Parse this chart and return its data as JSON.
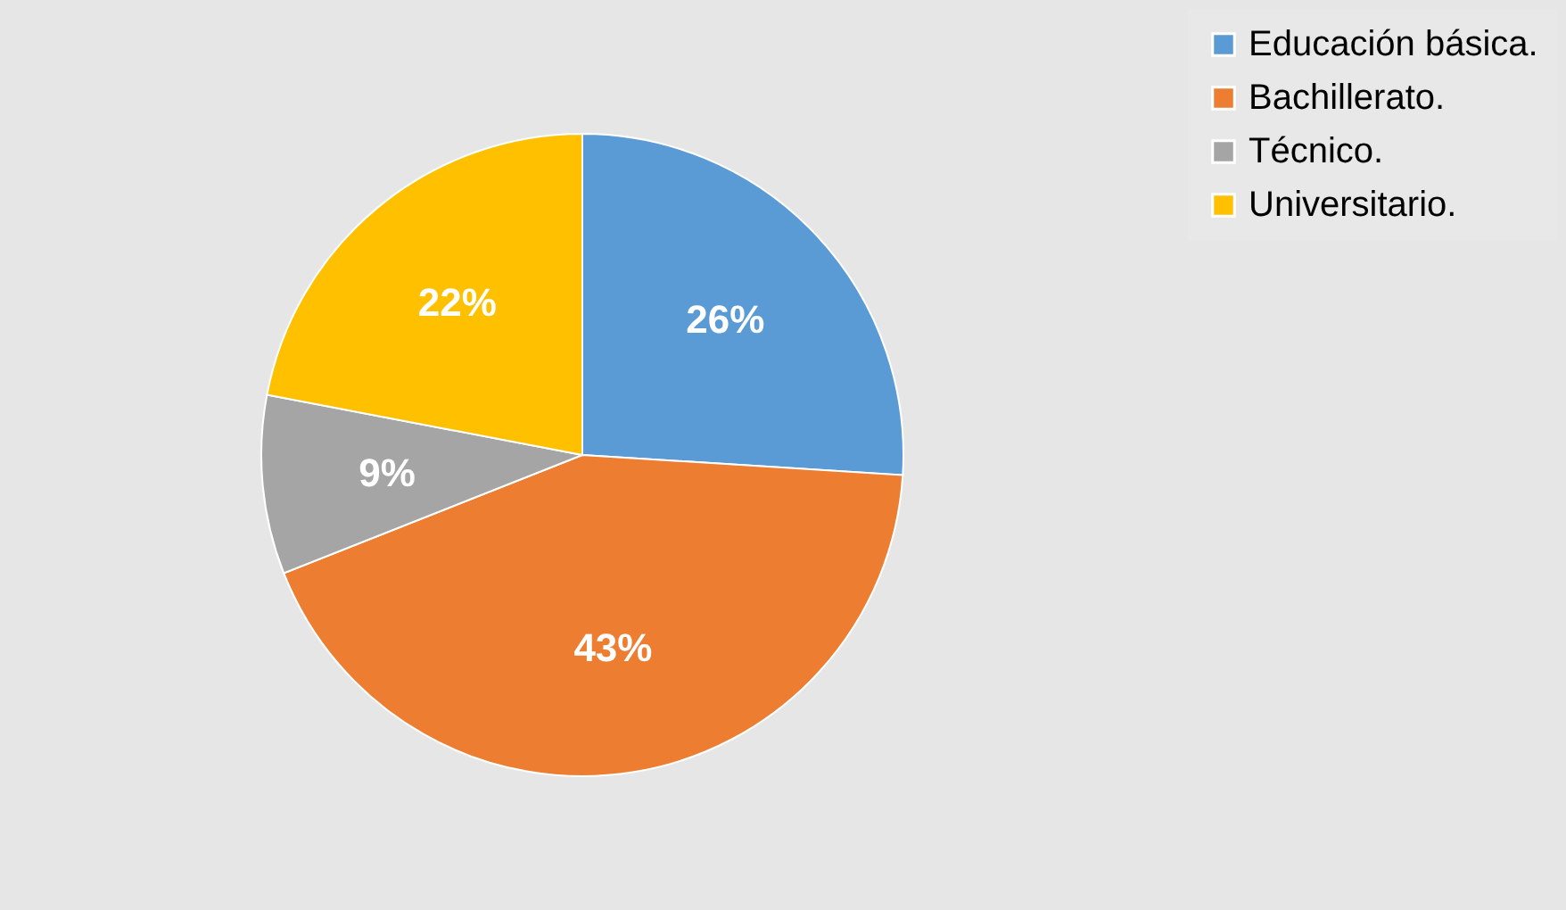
{
  "chart_data": {
    "type": "pie",
    "categories": [
      "Educación básica.",
      "Bachillerato.",
      "Técnico.",
      "Universitario."
    ],
    "values": [
      26,
      43,
      9,
      22
    ],
    "colors": [
      "#5b9bd5",
      "#ed7d31",
      "#a5a5a5",
      "#ffc000"
    ],
    "value_labels": [
      "26%",
      "43%",
      "9%",
      "22%"
    ],
    "legend": "right"
  }
}
